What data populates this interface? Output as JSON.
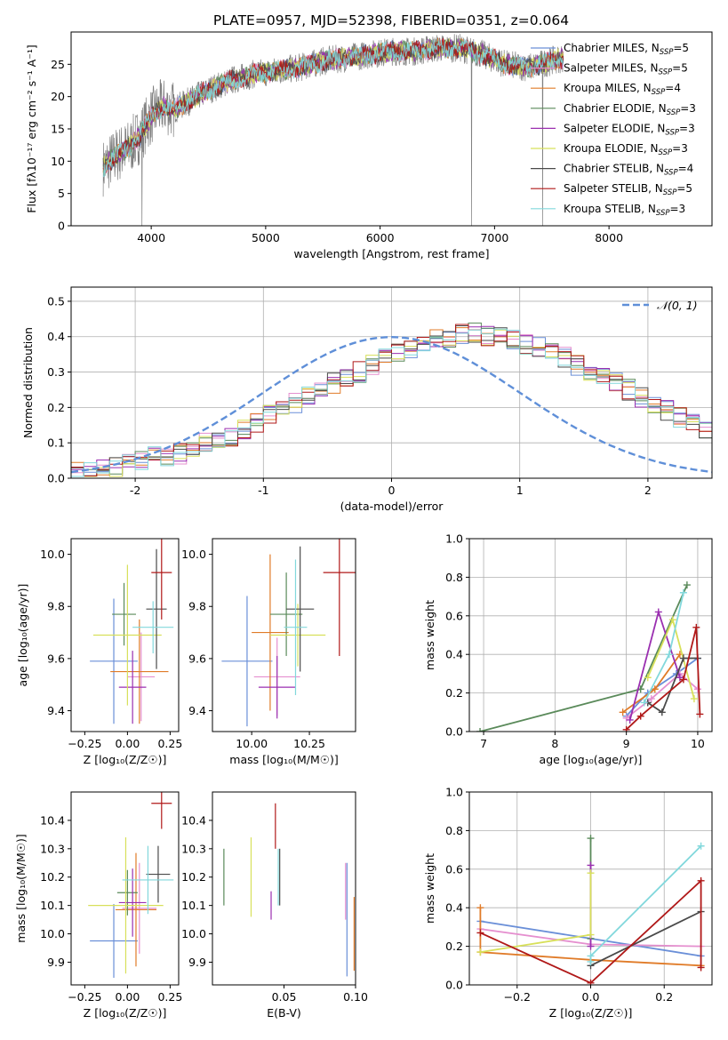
{
  "figure": {
    "title": "PLATE=0957, MJD=52398, FIBERID=0351, z=0.064"
  },
  "colors": {
    "series": [
      "#6a8fd8",
      "#e58fcf",
      "#e07b28",
      "#5a8a5a",
      "#9a2fb0",
      "#d8e05a",
      "#4a4a4a",
      "#b01818",
      "#82d8dc"
    ],
    "data_spectrum": "#808080",
    "normal_curve": "#5f8fd8",
    "grid": "#b0b0b0"
  },
  "chart_data": [
    {
      "id": "spectrum",
      "type": "line",
      "title": "PLATE=0957, MJD=52398, FIBERID=0351, z=0.064",
      "xlabel": "wavelength [Angstrom, rest frame]",
      "ylabel": "Flux [fλ10⁻¹⁷ erg cm⁻² s⁻¹ A⁻¹]",
      "xlim": [
        3300,
        8900
      ],
      "ylim": [
        0,
        30
      ],
      "xticks": [
        4000,
        5000,
        6000,
        7000,
        8000
      ],
      "yticks": [
        0,
        5,
        10,
        15,
        20,
        25
      ],
      "grid": false,
      "legend_position": "top-right",
      "legend": [
        {
          "label": "Chabrier MILES, N",
          "sub": "SSP",
          "suffix": "=5"
        },
        {
          "label": "Salpeter MILES, N",
          "sub": "SSP",
          "suffix": "=5"
        },
        {
          "label": "Kroupa MILES, N",
          "sub": "SSP",
          "suffix": "=4"
        },
        {
          "label": "Chabrier ELODIE, N",
          "sub": "SSP",
          "suffix": "=3"
        },
        {
          "label": "Salpeter ELODIE, N",
          "sub": "SSP",
          "suffix": "=3"
        },
        {
          "label": "Kroupa ELODIE, N",
          "sub": "SSP",
          "suffix": "=3"
        },
        {
          "label": "Chabrier STELIB, N",
          "sub": "SSP",
          "suffix": "=4"
        },
        {
          "label": "Salpeter STELIB, N",
          "sub": "SSP",
          "suffix": "=5"
        },
        {
          "label": "Kroupa STELIB, N",
          "sub": "SSP",
          "suffix": "=3"
        }
      ],
      "continuum": {
        "x": [
          3580,
          3700,
          3800,
          3900,
          4000,
          4100,
          4200,
          4300,
          4500,
          4700,
          4900,
          5100,
          5300,
          5500,
          5700,
          5900,
          6100,
          6300,
          6500,
          6700,
          6900,
          7100,
          7300,
          7500,
          7600
        ],
        "y": [
          9,
          11,
          12,
          14,
          17,
          18.5,
          18,
          19,
          21,
          22.5,
          23.5,
          24,
          24.5,
          25.5,
          26,
          26.5,
          27,
          27,
          27.5,
          27.5,
          26.5,
          25,
          24.5,
          25.5,
          26
        ]
      },
      "spikes": [
        {
          "x": 3920,
          "y": 0
        },
        {
          "x": 6800,
          "y": 0
        },
        {
          "x": 7420,
          "y": 0
        }
      ]
    },
    {
      "id": "residuals",
      "type": "line",
      "xlabel": "(data-model)/error",
      "ylabel": "Normed distribution",
      "xlim": [
        -2.5,
        2.5
      ],
      "ylim": [
        0,
        0.54
      ],
      "xticks": [
        -2,
        -1,
        0,
        1,
        2
      ],
      "yticks": [
        0.0,
        0.1,
        0.2,
        0.3,
        0.4,
        0.5
      ],
      "grid": true,
      "legend_position": "top-right",
      "legend": [
        {
          "label": "𝒩(0, 1)"
        }
      ],
      "normal": {
        "mean": 0,
        "sigma": 1
      },
      "histogram": {
        "bin_width": 0.1,
        "x_start": -2.5,
        "values": [
          0.02,
          0.02,
          0.03,
          0.03,
          0.04,
          0.05,
          0.06,
          0.06,
          0.07,
          0.08,
          0.1,
          0.11,
          0.12,
          0.14,
          0.16,
          0.18,
          0.19,
          0.21,
          0.23,
          0.25,
          0.27,
          0.29,
          0.3,
          0.32,
          0.34,
          0.36,
          0.37,
          0.38,
          0.39,
          0.4,
          0.41,
          0.41,
          0.4,
          0.4,
          0.39,
          0.38,
          0.37,
          0.35,
          0.34,
          0.32,
          0.3,
          0.29,
          0.27,
          0.25,
          0.23,
          0.21,
          0.19,
          0.17,
          0.15,
          0.14
        ]
      }
    },
    {
      "id": "age-vs-Z",
      "type": "scatter",
      "xlabel": "Z [log₁₀(Z/Z☉)]",
      "ylabel": "age  [log₁₀(age/yr)]",
      "xlim": [
        -0.33,
        0.3
      ],
      "ylim": [
        9.32,
        10.06
      ],
      "xticks": [
        -0.25,
        0.0,
        0.25
      ],
      "xticklabels": [
        "−0.25",
        "0.00",
        "0.25"
      ],
      "yticks": [
        9.4,
        9.6,
        9.8,
        10.0
      ],
      "grid": false,
      "points": [
        {
          "x": -0.08,
          "xerr": 0.14,
          "y": 9.59,
          "yerr": 0.24
        },
        {
          "x": 0.08,
          "xerr": 0.08,
          "y": 9.53,
          "yerr": 0.17
        },
        {
          "x": 0.07,
          "xerr": 0.17,
          "y": 9.55,
          "yerr": 0.2
        },
        {
          "x": -0.02,
          "xerr": 0.07,
          "y": 9.77,
          "yerr": 0.12
        },
        {
          "x": 0.03,
          "xerr": 0.08,
          "y": 9.49,
          "yerr": 0.14
        },
        {
          "x": 0.0,
          "xerr": 0.2,
          "y": 9.69,
          "yerr": 0.27
        },
        {
          "x": 0.17,
          "xerr": 0.06,
          "y": 9.79,
          "yerr": 0.23
        },
        {
          "x": 0.2,
          "xerr": 0.06,
          "y": 9.93,
          "yerr": 0.18
        },
        {
          "x": 0.15,
          "xerr": 0.12,
          "y": 9.72,
          "yerr": 0.1
        }
      ]
    },
    {
      "id": "age-vs-mass",
      "type": "scatter",
      "xlabel": "mass [log₁₀(M/M☉)]",
      "xlim": [
        9.83,
        10.45
      ],
      "ylim": [
        9.32,
        10.06
      ],
      "xticks": [
        10.0,
        10.25
      ],
      "xticklabels": [
        "10.00",
        "10.25"
      ],
      "yticks": [
        9.4,
        9.6,
        9.8,
        10.0
      ],
      "grid": false,
      "points": [
        {
          "x": 9.98,
          "xerr": 0.11,
          "y": 9.59,
          "yerr": 0.25
        },
        {
          "x": 10.11,
          "xerr": 0.1,
          "y": 9.53,
          "yerr": 0.15
        },
        {
          "x": 10.08,
          "xerr": 0.08,
          "y": 9.7,
          "yerr": 0.3
        },
        {
          "x": 10.15,
          "xerr": 0.07,
          "y": 9.77,
          "yerr": 0.16
        },
        {
          "x": 10.11,
          "xerr": 0.08,
          "y": 9.49,
          "yerr": 0.12
        },
        {
          "x": 10.2,
          "xerr": 0.12,
          "y": 9.69,
          "yerr": 0.12
        },
        {
          "x": 10.21,
          "xerr": 0.06,
          "y": 9.79,
          "yerr": 0.24
        },
        {
          "x": 10.38,
          "xerr": 0.07,
          "y": 9.93,
          "yerr": 0.32
        },
        {
          "x": 10.19,
          "xerr": 0.05,
          "y": 9.72,
          "yerr": 0.26
        }
      ]
    },
    {
      "id": "weight-vs-age",
      "type": "line",
      "xlabel": "age  [log₁₀(age/yr)]",
      "ylabel": "mass weight",
      "xlim": [
        6.8,
        10.2
      ],
      "ylim": [
        0,
        1
      ],
      "xticks": [
        7,
        8,
        9,
        10
      ],
      "yticks": [
        0.0,
        0.2,
        0.4,
        0.6,
        0.8,
        1.0
      ],
      "grid": true,
      "series": [
        {
          "x": [
            9.0,
            9.3,
            9.7,
            10.0
          ],
          "y": [
            0.08,
            0.2,
            0.3,
            0.38
          ]
        },
        {
          "x": [
            9.0,
            9.35,
            9.75,
            10.0
          ],
          "y": [
            0.07,
            0.17,
            0.3,
            0.22
          ]
        },
        {
          "x": [
            8.95,
            9.4,
            9.75
          ],
          "y": [
            0.1,
            0.22,
            0.4
          ]
        },
        {
          "x": [
            6.95,
            9.2,
            9.85
          ],
          "y": [
            0.0,
            0.22,
            0.76
          ]
        },
        {
          "x": [
            9.05,
            9.45,
            9.75
          ],
          "y": [
            0.06,
            0.62,
            0.28
          ]
        },
        {
          "x": [
            9.3,
            9.65,
            9.95
          ],
          "y": [
            0.28,
            0.58,
            0.17
          ]
        },
        {
          "x": [
            9.3,
            9.5,
            9.8,
            10.0
          ],
          "y": [
            0.15,
            0.1,
            0.38,
            0.38
          ]
        },
        {
          "x": [
            9.0,
            9.2,
            9.8,
            9.98,
            10.03
          ],
          "y": [
            0.01,
            0.08,
            0.27,
            0.54,
            0.09
          ]
        },
        {
          "x": [
            9.25,
            9.6,
            9.8
          ],
          "y": [
            0.15,
            0.4,
            0.72
          ]
        }
      ]
    },
    {
      "id": "mass-vs-Z",
      "type": "scatter",
      "xlabel": "Z [log₁₀(Z/Z☉)]",
      "ylabel": "mass [log₁₀(M/M☉)]",
      "xlim": [
        -0.33,
        0.3
      ],
      "ylim": [
        9.82,
        10.5
      ],
      "xticks": [
        -0.25,
        0.0,
        0.25
      ],
      "xticklabels": [
        "−0.25",
        "0.00",
        "0.25"
      ],
      "yticks": [
        9.9,
        10.0,
        10.1,
        10.2,
        10.3,
        10.4
      ],
      "grid": false,
      "points": [
        {
          "x": -0.08,
          "xerr": 0.14,
          "y": 9.975,
          "yerr": 0.13
        },
        {
          "x": 0.07,
          "xerr": 0.1,
          "y": 10.09,
          "yerr": 0.16
        },
        {
          "x": 0.05,
          "xerr": 0.12,
          "y": 10.085,
          "yerr": 0.2
        },
        {
          "x": 0.0,
          "xerr": 0.06,
          "y": 10.145,
          "yerr": 0.08
        },
        {
          "x": 0.03,
          "xerr": 0.08,
          "y": 10.11,
          "yerr": 0.12
        },
        {
          "x": -0.01,
          "xerr": 0.22,
          "y": 10.1,
          "yerr": 0.24
        },
        {
          "x": 0.18,
          "xerr": 0.07,
          "y": 10.21,
          "yerr": 0.1
        },
        {
          "x": 0.2,
          "xerr": 0.06,
          "y": 10.46,
          "yerr": 0.09
        },
        {
          "x": 0.12,
          "xerr": 0.15,
          "y": 10.19,
          "yerr": 0.12
        }
      ]
    },
    {
      "id": "mass-vs-EBV",
      "type": "scatter",
      "xlabel": "E(B-V)",
      "xlim": [
        0.0,
        0.1
      ],
      "ylim": [
        9.82,
        10.5
      ],
      "xticks": [
        0.05,
        0.1
      ],
      "xticklabels": [
        "0.05",
        "0.10"
      ],
      "yticks": [
        9.9,
        10.0,
        10.1,
        10.2,
        10.3,
        10.4
      ],
      "grid": false,
      "points": [
        {
          "x": 0.094,
          "y": 10.05,
          "yerr": 0.2
        },
        {
          "x": 0.093,
          "y": 10.15,
          "yerr": 0.1
        },
        {
          "x": 0.099,
          "y": 10.0,
          "yerr": 0.13
        },
        {
          "x": 0.008,
          "y": 10.2,
          "yerr": 0.1
        },
        {
          "x": 0.041,
          "y": 10.1,
          "yerr": 0.05
        },
        {
          "x": 0.027,
          "y": 10.2,
          "yerr": 0.14
        },
        {
          "x": 0.047,
          "y": 10.2,
          "yerr": 0.1
        },
        {
          "x": 0.044,
          "y": 10.38,
          "yerr": 0.08
        },
        {
          "x": 0.046,
          "y": 10.2,
          "yerr": 0.1
        }
      ]
    },
    {
      "id": "weight-vs-Z",
      "type": "line",
      "xlabel": "Z [log₁₀(Z/Z☉)]",
      "ylabel": "mass weight",
      "xlim": [
        -0.33,
        0.33
      ],
      "ylim": [
        0,
        1
      ],
      "xticks": [
        -0.2,
        0.0,
        0.2
      ],
      "xticklabels": [
        "−0.2",
        "0.0",
        "0.2"
      ],
      "yticks": [
        0.0,
        0.2,
        0.4,
        0.6,
        0.8,
        1.0
      ],
      "grid": true,
      "series": [
        {
          "x": [
            -0.3,
            0.0,
            0.3
          ],
          "y": [
            0.33,
            0.24,
            0.15
          ]
        },
        {
          "x": [
            -0.3,
            0.0,
            0.3
          ],
          "y": [
            0.29,
            0.21,
            0.2
          ]
        },
        {
          "x": [
            -0.3,
            -0.3,
            0.0,
            0.3
          ],
          "y": [
            0.4,
            0.17,
            0.13,
            0.1
          ]
        },
        {
          "x": [
            0.0,
            0.0
          ],
          "y": [
            0.76,
            0.24
          ]
        },
        {
          "x": [
            0.0,
            0.0
          ],
          "y": [
            0.62,
            0.2
          ]
        },
        {
          "x": [
            -0.3,
            0.0,
            0.0
          ],
          "y": [
            0.17,
            0.26,
            0.58
          ]
        },
        {
          "x": [
            0.0,
            0.3
          ],
          "y": [
            0.1,
            0.38
          ]
        },
        {
          "x": [
            -0.3,
            0.0,
            0.3,
            0.3
          ],
          "y": [
            0.27,
            0.01,
            0.54,
            0.09
          ]
        },
        {
          "x": [
            0.0,
            0.0,
            0.3
          ],
          "y": [
            0.12,
            0.15,
            0.72
          ]
        }
      ]
    }
  ]
}
